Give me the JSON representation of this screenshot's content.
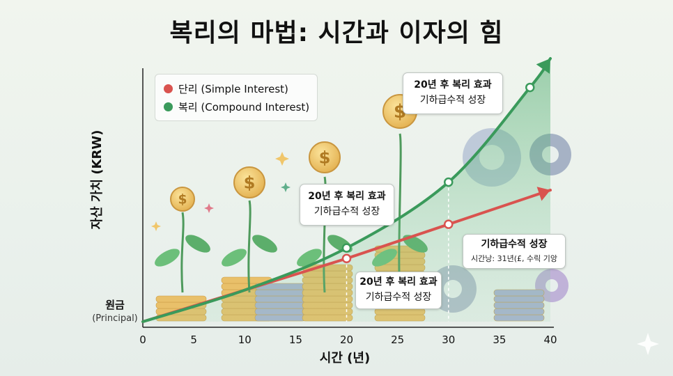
{
  "title": "복리의 마법: 시간과 이자의 힘",
  "chart_data": {
    "type": "line",
    "title": "복리의 마법: 시간과 이자의 힘",
    "xlabel": "시간 (년)",
    "ylabel": "자산 가치 (KRW)",
    "xlim": [
      0,
      40
    ],
    "ylim": [
      0,
      100
    ],
    "x_ticks": [
      0,
      5,
      10,
      15,
      20,
      25,
      30,
      35,
      40
    ],
    "y_tick_label": "원금",
    "y_tick_sublabel": "(Principal)",
    "legend_position": "top-left",
    "series": [
      {
        "name": "단리 (Simple Interest)",
        "color": "#d9534f",
        "x": [
          0,
          20,
          30,
          40
        ],
        "y": [
          0,
          24,
          37,
          50
        ]
      },
      {
        "name": "복리 (Compound Interest)",
        "color": "#3a9a5b",
        "x": [
          0,
          10,
          20,
          30,
          38,
          40
        ],
        "y": [
          0,
          12,
          28,
          53,
          89,
          100
        ]
      }
    ],
    "markers": {
      "simple": [
        {
          "x": 20,
          "y": 24
        },
        {
          "x": 30,
          "y": 37
        }
      ],
      "compound": [
        {
          "x": 20,
          "y": 28
        },
        {
          "x": 30,
          "y": 53
        },
        {
          "x": 38,
          "y": 89
        }
      ]
    },
    "annotations": [
      {
        "line1": "20년 후 복리 효과",
        "line2": "기하급수적 성장"
      },
      {
        "line1": "20년 후 복리 효과",
        "line2": "기하급수적 성장"
      },
      {
        "line1": "20년 후 복리 효과",
        "line2": "기하급수적 성장"
      },
      {
        "line1": "기하급수적 성장",
        "line2": "시간낭: 31년(£, 수릭 기앙"
      }
    ]
  }
}
